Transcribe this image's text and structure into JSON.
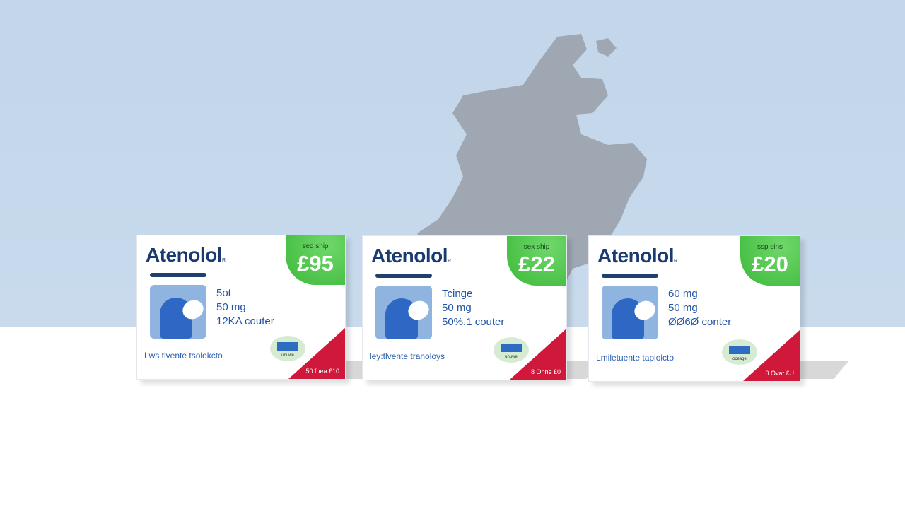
{
  "colors": {
    "sky": "#c5d7ea",
    "map": "#9ea7b2",
    "badge": "#3cb83a",
    "brand": "#1a3a72",
    "corner": "#d0183a"
  },
  "boxes": [
    {
      "brand": "Atenolol",
      "mark": "R",
      "badge_text": "sed ship",
      "price": "£95",
      "lines": [
        "5ot",
        "50 mg",
        "12KA couter"
      ],
      "desc": "Lws tlvente tsolokcto",
      "truck_label": "unuwe",
      "corner": "50 fuea £10"
    },
    {
      "brand": "Atenolol",
      "mark": "R",
      "badge_text": "sex ship",
      "price": "£22",
      "lines": [
        "Tcinge",
        "50 mg",
        "50%.1 couter"
      ],
      "desc": "ley:tlvente tranoloys",
      "truck_label": "unuwe",
      "corner": "8 Onne £0"
    },
    {
      "brand": "Atenolol",
      "mark": "R",
      "badge_text": "ssp sins",
      "price": "£20",
      "lines": [
        "60 mg",
        "50 mg",
        "ØØ6Ø conter"
      ],
      "desc": "Lmiletuente tapiolcto",
      "truck_label": "oceage",
      "corner": "0 Ovat £U"
    }
  ]
}
